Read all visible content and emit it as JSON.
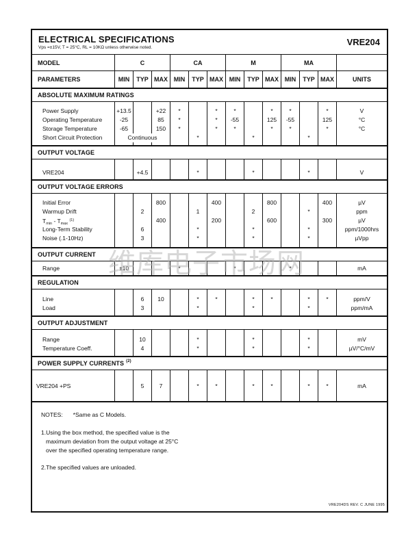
{
  "header": {
    "title": "ELECTRICAL SPECIFICATIONS",
    "conditions": "Vps =±15V, T = 25°C, RL = 10KΩ unless otherwise noted.",
    "part_number": "VRE204"
  },
  "watermark": {
    "text": "维库电子市场网"
  },
  "table": {
    "model_label": "MODEL",
    "parameters_label": "PARAMETERS",
    "units_label": "UNITS",
    "models": [
      "C",
      "CA",
      "M",
      "MA"
    ],
    "subcolumns": [
      "MIN",
      "TYP",
      "MAX"
    ],
    "sections": [
      {
        "title": "ABSOLUTE MAXIMUM RATINGS",
        "sup": "",
        "rows": [
          {
            "param": "Power Supply",
            "c": [
              "+13.5",
              "",
              "+22"
            ],
            "ca": [
              "*",
              "",
              "*"
            ],
            "m": [
              "*",
              "",
              "*"
            ],
            "ma": [
              "*",
              "",
              "*"
            ],
            "units": "V"
          },
          {
            "param": "Operating Temperature",
            "c": [
              "-25",
              "",
              "85"
            ],
            "ca": [
              "*",
              "",
              "*"
            ],
            "m": [
              "-55",
              "",
              "125"
            ],
            "ma": [
              "-55",
              "",
              "125"
            ],
            "units": "°C"
          },
          {
            "param": "Storage Temperature",
            "c": [
              "-65",
              "",
              "150"
            ],
            "ca": [
              "*",
              "",
              "*"
            ],
            "m": [
              "*",
              "",
              "*"
            ],
            "ma": [
              "*",
              "",
              "*"
            ],
            "units": "°C"
          },
          {
            "param": "Short Circuit Protection",
            "c": [
              "",
              "",
              ""
            ],
            "c_span": "Continuous",
            "ca": [
              "",
              "*",
              ""
            ],
            "m": [
              "",
              "*",
              ""
            ],
            "ma": [
              "",
              "*",
              ""
            ],
            "units": ""
          }
        ]
      },
      {
        "title": "OUTPUT VOLTAGE",
        "sup": "",
        "rows": [
          {
            "param": "VRE204",
            "c": [
              "",
              "+4.5",
              ""
            ],
            "ca": [
              "",
              "*",
              ""
            ],
            "m": [
              "",
              "*",
              ""
            ],
            "ma": [
              "",
              "*",
              ""
            ],
            "units": "V"
          }
        ]
      },
      {
        "title": "OUTPUT VOLTAGE ERRORS",
        "sup": "",
        "rows": [
          {
            "param": "Initial Error",
            "c": [
              "",
              "",
              "800"
            ],
            "ca": [
              "",
              "",
              "400"
            ],
            "m": [
              "",
              "",
              "800"
            ],
            "ma": [
              "",
              "",
              "400"
            ],
            "units": "µV"
          },
          {
            "param": "Warmup Drift",
            "c": [
              "",
              "2",
              ""
            ],
            "ca": [
              "",
              "1",
              ""
            ],
            "m": [
              "",
              "2",
              ""
            ],
            "ma": [
              "",
              "*",
              ""
            ],
            "units": "ppm"
          },
          {
            "param": "T~min~ - T~max~  ^(1)^",
            "c": [
              "",
              "",
              "400"
            ],
            "ca": [
              "",
              "",
              "200"
            ],
            "m": [
              "",
              "",
              "600"
            ],
            "ma": [
              "",
              "",
              "300"
            ],
            "units": "µV"
          },
          {
            "param": "Long-Term Stability",
            "c": [
              "",
              "6",
              ""
            ],
            "ca": [
              "",
              "*",
              ""
            ],
            "m": [
              "",
              "*",
              ""
            ],
            "ma": [
              "",
              "*",
              ""
            ],
            "units": "ppm/1000hrs"
          },
          {
            "param": "Noise (.1-10Hz)",
            "c": [
              "",
              "3",
              ""
            ],
            "ca": [
              "",
              "*",
              ""
            ],
            "m": [
              "",
              "*",
              ""
            ],
            "ma": [
              "",
              "*",
              ""
            ],
            "units": "µVpp"
          }
        ]
      },
      {
        "title": "OUTPUT CURRENT",
        "sup": "",
        "rows": [
          {
            "param": "Range",
            "c": [
              "±10",
              "",
              ""
            ],
            "ca": [
              "*",
              "",
              ""
            ],
            "m": [
              "*",
              "",
              ""
            ],
            "ma": [
              "*",
              "",
              ""
            ],
            "units": "mA"
          }
        ]
      },
      {
        "title": "REGULATION",
        "sup": "",
        "rows": [
          {
            "param": "Line",
            "c": [
              "",
              "6",
              "10"
            ],
            "ca": [
              "",
              "*",
              "*"
            ],
            "m": [
              "",
              "*",
              "*"
            ],
            "ma": [
              "",
              "*",
              "*"
            ],
            "units": "ppm/V"
          },
          {
            "param": "Load",
            "c": [
              "",
              "3",
              ""
            ],
            "ca": [
              "",
              "*",
              ""
            ],
            "m": [
              "",
              "*",
              ""
            ],
            "ma": [
              "",
              "*",
              ""
            ],
            "units": "ppm/mA"
          }
        ]
      },
      {
        "title": "OUTPUT ADJUSTMENT",
        "sup": "",
        "rows": [
          {
            "param": "Range",
            "c": [
              "",
              "10",
              ""
            ],
            "ca": [
              "",
              "*",
              ""
            ],
            "m": [
              "",
              "*",
              ""
            ],
            "ma": [
              "",
              "*",
              ""
            ],
            "units": "mV"
          },
          {
            "param": "Temperature Coeff.",
            "c": [
              "",
              "4",
              ""
            ],
            "ca": [
              "",
              "*",
              ""
            ],
            "m": [
              "",
              "*",
              ""
            ],
            "ma": [
              "",
              "*",
              ""
            ],
            "units": "µV/°C/mV"
          }
        ]
      },
      {
        "title": "POWER SUPPLY CURRENTS",
        "sup": "(2)",
        "rows": [
          {
            "param": "VRE204 +PS",
            "c": [
              "",
              "5",
              "7"
            ],
            "ca": [
              "",
              "*",
              "*"
            ],
            "m": [
              "",
              "*",
              "*"
            ],
            "ma": [
              "",
              "*",
              "*"
            ],
            "units": "mA"
          }
        ]
      }
    ]
  },
  "notes": {
    "label": "NOTES:",
    "star_note": "*Same as C Models.",
    "note1_lines": [
      "1.Using the box method, the specified value is the",
      "maximum deviation from the output voltage at 25°C",
      "over the specified operating temperature range."
    ],
    "note2": "2.The specified values are unloaded."
  },
  "footer": {
    "text": "VRE204DS REV. C JUNE 1995"
  }
}
